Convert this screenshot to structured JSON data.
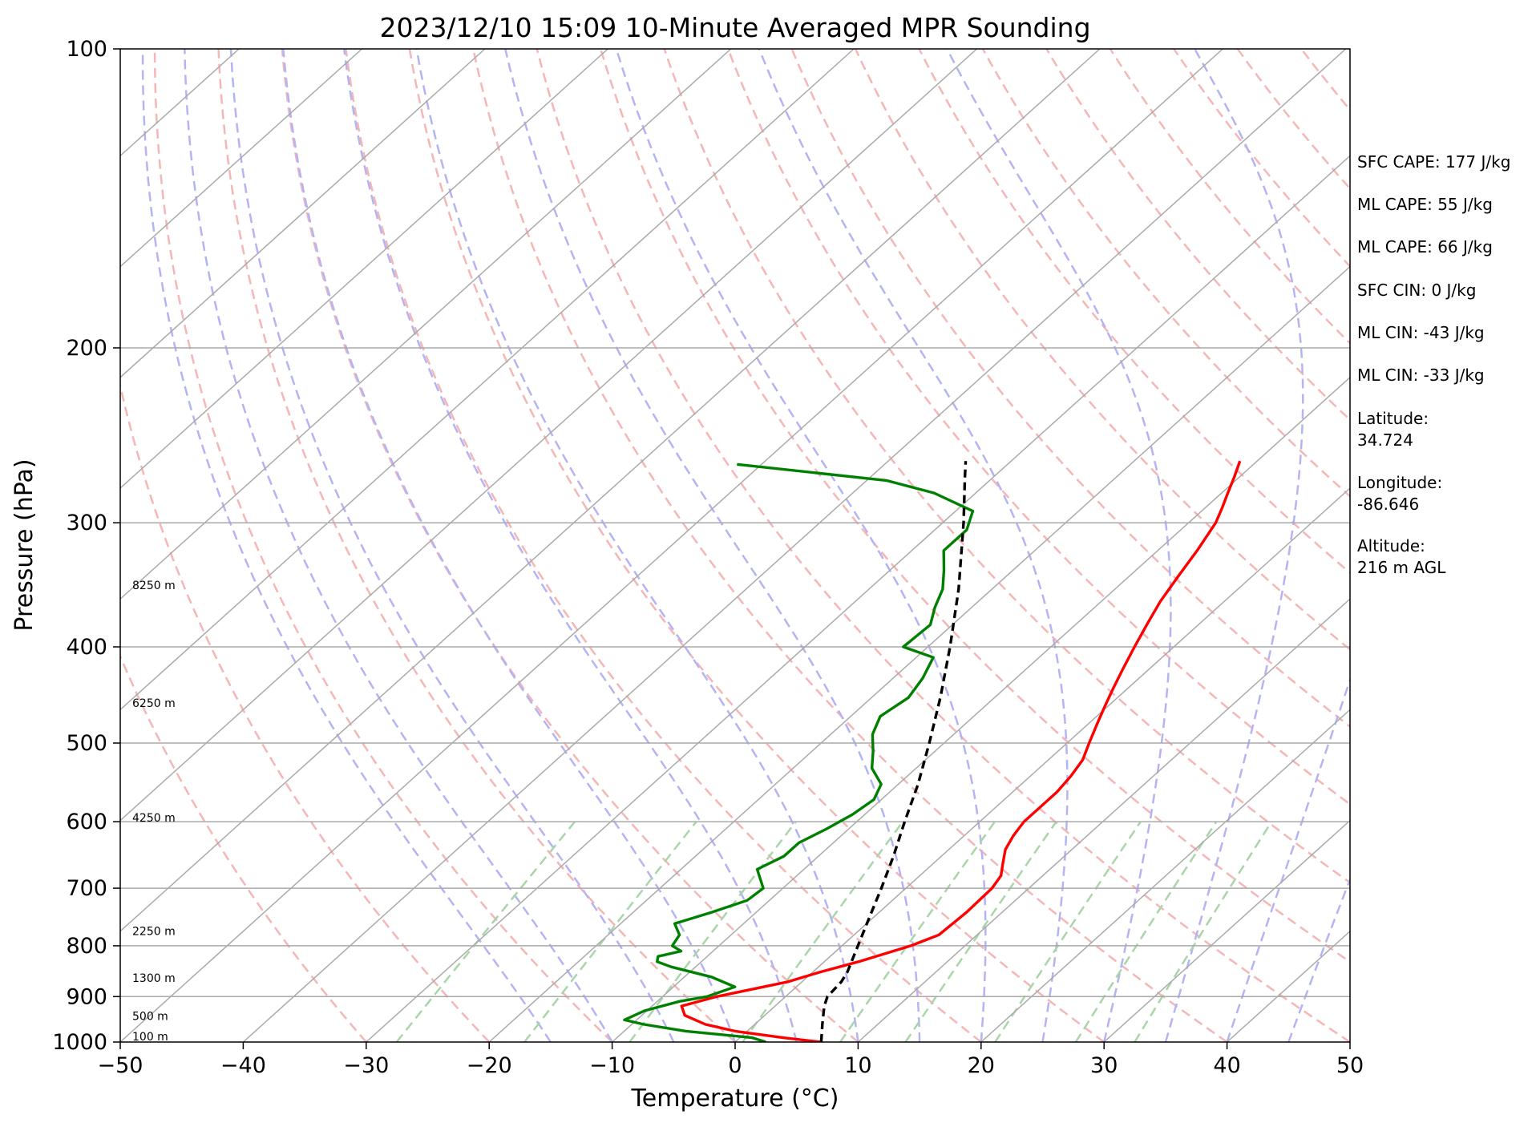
{
  "chart_data": {
    "type": "line",
    "title": "2023/12/10 15:09 10-Minute Averaged MPR Sounding",
    "xlabel": "Temperature (°C)",
    "ylabel": "Pressure (hPa)",
    "xlim": [
      -50,
      50
    ],
    "ylim": [
      1000,
      100
    ],
    "y_scale": "log",
    "skew_t": true,
    "x_ticks": [
      "−50",
      "−40",
      "−30",
      "−20",
      "−10",
      "0",
      "10",
      "20",
      "30",
      "40",
      "50"
    ],
    "y_ticks": [
      "100",
      "200",
      "300",
      "400",
      "500",
      "600",
      "700",
      "800",
      "900",
      "1000"
    ],
    "height_labels": [
      {
        "p": 1000,
        "text": "100 m"
      },
      {
        "p": 950,
        "text": "500 m"
      },
      {
        "p": 870,
        "text": "1300 m"
      },
      {
        "p": 780,
        "text": "2250 m"
      },
      {
        "p": 600,
        "text": "4250 m"
      },
      {
        "p": 460,
        "text": "6250 m"
      },
      {
        "p": 350,
        "text": "8250 m"
      }
    ],
    "series": [
      {
        "key": "temperature",
        "color": "#ff0000",
        "points": [
          [
            1000,
            7.0
          ],
          [
            990,
            3.5
          ],
          [
            975,
            -1.0
          ],
          [
            960,
            -4.0
          ],
          [
            940,
            -6.5
          ],
          [
            920,
            -7.6
          ],
          [
            900,
            -5.6
          ],
          [
            870,
            -1.2
          ],
          [
            850,
            0.6
          ],
          [
            830,
            2.8
          ],
          [
            800,
            5.6
          ],
          [
            780,
            6.9
          ],
          [
            740,
            7.1
          ],
          [
            700,
            7.0
          ],
          [
            680,
            6.6
          ],
          [
            660,
            5.6
          ],
          [
            640,
            4.6
          ],
          [
            620,
            4.0
          ],
          [
            600,
            3.6
          ],
          [
            580,
            3.6
          ],
          [
            560,
            3.6
          ],
          [
            540,
            3.3
          ],
          [
            520,
            2.8
          ],
          [
            500,
            1.8
          ],
          [
            480,
            0.8
          ],
          [
            460,
            -0.2
          ],
          [
            440,
            -1.2
          ],
          [
            420,
            -2.2
          ],
          [
            400,
            -3.2
          ],
          [
            380,
            -4.2
          ],
          [
            360,
            -5.2
          ],
          [
            340,
            -6.0
          ],
          [
            320,
            -6.8
          ],
          [
            300,
            -7.8
          ],
          [
            290,
            -8.6
          ],
          [
            280,
            -9.5
          ],
          [
            270,
            -10.4
          ],
          [
            260,
            -11.4
          ]
        ]
      },
      {
        "key": "dewpoint",
        "color": "#008000",
        "points": [
          [
            1000,
            2.5
          ],
          [
            990,
            1.0
          ],
          [
            975,
            -5.0
          ],
          [
            960,
            -9.0
          ],
          [
            950,
            -11.0
          ],
          [
            930,
            -10.2
          ],
          [
            910,
            -8.2
          ],
          [
            900,
            -6.4
          ],
          [
            880,
            -5.0
          ],
          [
            860,
            -7.8
          ],
          [
            840,
            -12.0
          ],
          [
            830,
            -13.6
          ],
          [
            820,
            -14.0
          ],
          [
            810,
            -12.6
          ],
          [
            800,
            -13.8
          ],
          [
            780,
            -14.2
          ],
          [
            760,
            -15.6
          ],
          [
            740,
            -13.6
          ],
          [
            720,
            -11.8
          ],
          [
            700,
            -11.6
          ],
          [
            670,
            -13.8
          ],
          [
            650,
            -12.8
          ],
          [
            630,
            -12.8
          ],
          [
            610,
            -11.8
          ],
          [
            590,
            -11.0
          ],
          [
            570,
            -10.6
          ],
          [
            550,
            -11.4
          ],
          [
            530,
            -13.6
          ],
          [
            510,
            -15.0
          ],
          [
            490,
            -16.6
          ],
          [
            470,
            -17.6
          ],
          [
            450,
            -17.0
          ],
          [
            430,
            -17.6
          ],
          [
            410,
            -18.6
          ],
          [
            400,
            -22.0
          ],
          [
            380,
            -21.8
          ],
          [
            365,
            -23.0
          ],
          [
            350,
            -24.0
          ],
          [
            335,
            -25.6
          ],
          [
            320,
            -27.4
          ],
          [
            305,
            -27.4
          ],
          [
            292,
            -28.6
          ],
          [
            280,
            -33.4
          ],
          [
            272,
            -38.4
          ],
          [
            262,
            -52.0
          ]
        ]
      },
      {
        "key": "parcel",
        "color": "#000000",
        "points": [
          [
            1000,
            7.0
          ],
          [
            960,
            5.5
          ],
          [
            920,
            4.0
          ],
          [
            900,
            3.4
          ],
          [
            870,
            3.2
          ],
          [
            850,
            2.8
          ],
          [
            800,
            1.3
          ],
          [
            750,
            -0.3
          ],
          [
            700,
            -2.0
          ],
          [
            650,
            -3.9
          ],
          [
            600,
            -6.1
          ],
          [
            550,
            -8.4
          ],
          [
            500,
            -11.2
          ],
          [
            450,
            -14.4
          ],
          [
            400,
            -18.2
          ],
          [
            350,
            -22.7
          ],
          [
            300,
            -28.3
          ],
          [
            270,
            -32.3
          ],
          [
            260,
            -33.7
          ]
        ]
      }
    ]
  },
  "info_panel": {
    "sfc_cape": "SFC CAPE: 177 J/kg",
    "ml_cape_1": "ML CAPE: 55 J/kg",
    "ml_cape_2": "ML CAPE: 66 J/kg",
    "sfc_cin": "SFC CIN: 0 J/kg",
    "ml_cin_1": "ML CIN: -43 J/kg",
    "ml_cin_2": "ML CIN: -33 J/kg",
    "latitude_label": "Latitude:",
    "latitude_value": "34.724",
    "longitude_label": "Longitude:",
    "longitude_value": "-86.646",
    "altitude_label": "Altitude:",
    "altitude_value": "216 m AGL"
  },
  "colors": {
    "isotherm": "#aaaaaa",
    "dry_adiabat": "#f4b6b6",
    "moist_adiabat": "#b4b4f4",
    "mixing_ratio": "#a9d6a9"
  }
}
